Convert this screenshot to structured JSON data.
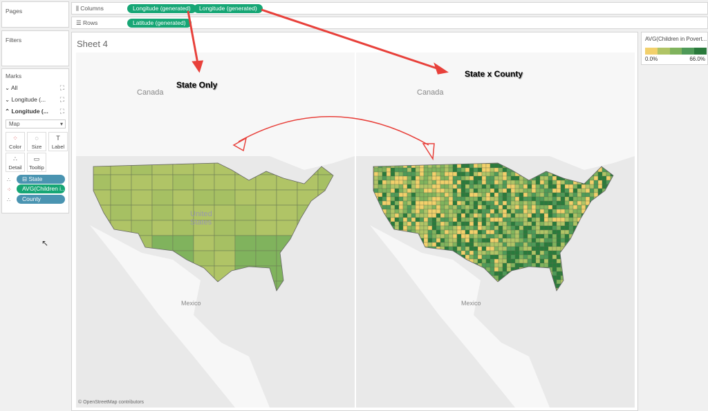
{
  "pages": {
    "label": "Pages"
  },
  "filters": {
    "label": "Filters"
  },
  "shelves": {
    "columns_label": "Columns",
    "rows_label": "Rows",
    "columns": [
      "Longitude (generated)",
      "Longitude (generated)"
    ],
    "rows": [
      "Latitude (generated)"
    ]
  },
  "marks": {
    "label": "Marks",
    "cards": [
      "All",
      "Longitude (...",
      "Longitude (..."
    ],
    "mark_type": "Map",
    "buttons": [
      "Color",
      "Size",
      "Label",
      "Detail",
      "Tooltip"
    ],
    "fields": [
      {
        "label": "State",
        "icon": "detail-icon"
      },
      {
        "label": "AVG(Children i..",
        "icon": "color-icon"
      },
      {
        "label": "County",
        "icon": "detail-icon"
      }
    ]
  },
  "sheet": {
    "title": "Sheet 4"
  },
  "map": {
    "country_labels": [
      "Canada",
      "Mexico",
      "United States"
    ],
    "attribution": "© OpenStreetMap contributors"
  },
  "annotations": {
    "left": "State Only",
    "right": "State x County"
  },
  "legend": {
    "title": "AVG(Children in Povert...",
    "min": "0.0%",
    "max": "66.0%",
    "colors": [
      "#f2d06b",
      "#b0c466",
      "#80b35d",
      "#4f9a58",
      "#2a7a3c"
    ]
  }
}
